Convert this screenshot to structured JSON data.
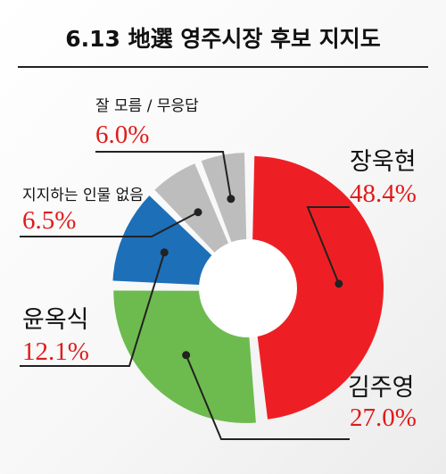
{
  "chart_data": {
    "type": "pie",
    "title": "6.13 地選 영주시장 후보 지지도",
    "colors": {
      "title_rule": "#222222",
      "percent_text": "#e01b1b",
      "leader_line": "#222222",
      "hole": "#ffffff"
    },
    "slices": [
      {
        "label": "장욱현",
        "value": 48.4,
        "value_label": "48.4%",
        "color": "#ee1f24"
      },
      {
        "label": "김주영",
        "value": 27.0,
        "value_label": "27.0%",
        "color": "#6dbb4e"
      },
      {
        "label": "윤옥식",
        "value": 12.1,
        "value_label": "12.1%",
        "color": "#1d6fb8"
      },
      {
        "label": "지지하는 인물 없음",
        "value": 6.5,
        "value_label": "6.5%",
        "color": "#bdbdbd"
      },
      {
        "label": "잘 모름 / 무응답",
        "value": 6.0,
        "value_label": "6.0%",
        "color": "#bdbdbd"
      }
    ]
  }
}
